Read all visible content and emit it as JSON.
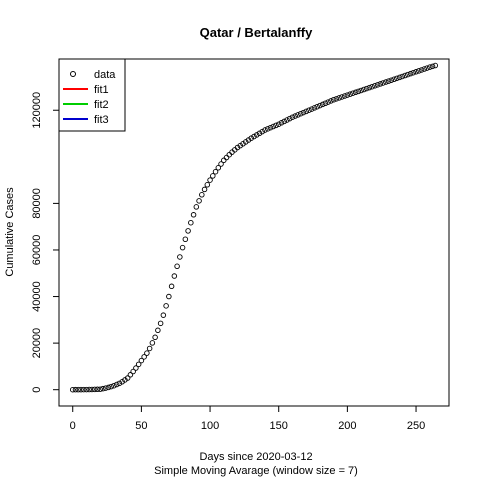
{
  "chart_data": {
    "type": "scatter",
    "title": "Qatar / Bertalanffy",
    "xlabel": "Days since 2020-03-12",
    "xlabel_sub": "Simple Moving Avarage (window size = 7)",
    "ylabel": "Cumulative Cases",
    "xlim": [
      -10,
      274
    ],
    "ylim": [
      -7000,
      142000
    ],
    "x_ticks": [
      0,
      50,
      100,
      150,
      200,
      250
    ],
    "y_ticks": [
      0,
      20000,
      40000,
      60000,
      80000,
      120000
    ],
    "legend": {
      "position": "top-left",
      "entries": [
        {
          "name": "data",
          "symbol": "circle",
          "color": "#000000"
        },
        {
          "name": "fit1",
          "symbol": "line",
          "color": "#ff0000"
        },
        {
          "name": "fit2",
          "symbol": "line",
          "color": "#00cd00"
        },
        {
          "name": "fit3",
          "symbol": "line",
          "color": "#0000cd"
        }
      ]
    },
    "series": [
      {
        "name": "data",
        "marker": "circle",
        "color": "#000000",
        "anchors": [
          [
            0,
            0
          ],
          [
            10,
            50
          ],
          [
            20,
            200
          ],
          [
            25,
            800
          ],
          [
            30,
            1700
          ],
          [
            35,
            3000
          ],
          [
            40,
            5000
          ],
          [
            45,
            8500
          ],
          [
            50,
            12500
          ],
          [
            55,
            16500
          ],
          [
            60,
            22500
          ],
          [
            65,
            30000
          ],
          [
            70,
            40000
          ],
          [
            75,
            51000
          ],
          [
            80,
            61000
          ],
          [
            85,
            70000
          ],
          [
            90,
            78500
          ],
          [
            95,
            85000
          ],
          [
            100,
            90000
          ],
          [
            105,
            94500
          ],
          [
            110,
            98500
          ],
          [
            115,
            101500
          ],
          [
            120,
            104000
          ],
          [
            130,
            108000
          ],
          [
            140,
            111500
          ],
          [
            150,
            114000
          ],
          [
            160,
            117000
          ],
          [
            170,
            119500
          ],
          [
            180,
            122000
          ],
          [
            190,
            124500
          ],
          [
            200,
            126500
          ],
          [
            210,
            128500
          ],
          [
            220,
            130500
          ],
          [
            230,
            132500
          ],
          [
            240,
            134500
          ],
          [
            250,
            136500
          ],
          [
            260,
            138500
          ],
          [
            264,
            139200
          ]
        ]
      }
    ]
  }
}
